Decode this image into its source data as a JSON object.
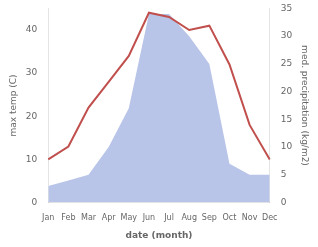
{
  "chart_data": {
    "type": "line",
    "categories": [
      "Jan",
      "Feb",
      "Mar",
      "Apr",
      "May",
      "Jun",
      "Jul",
      "Aug",
      "Sep",
      "Oct",
      "Nov",
      "Dec"
    ],
    "xlabel": "date (month)",
    "ylabel": "max temp (C)",
    "y2label": "med. precipitation (kg/m2)",
    "ylim": [
      0,
      45
    ],
    "yticks": [
      0,
      10,
      20,
      30,
      40
    ],
    "y2lim": [
      0,
      35
    ],
    "y2ticks": [
      0,
      5,
      10,
      15,
      20,
      25,
      30,
      35
    ],
    "grid": false,
    "series": [
      {
        "type": "area",
        "axis": "y2",
        "color": "#b8c4e8",
        "values": [
          3,
          4,
          5,
          10,
          17,
          34,
          34,
          30,
          25,
          7,
          5,
          5
        ]
      },
      {
        "type": "line",
        "color": "#c0504d",
        "values": [
          10,
          13,
          22,
          28,
          34,
          44,
          43,
          40,
          41,
          32,
          18,
          10
        ]
      }
    ]
  }
}
